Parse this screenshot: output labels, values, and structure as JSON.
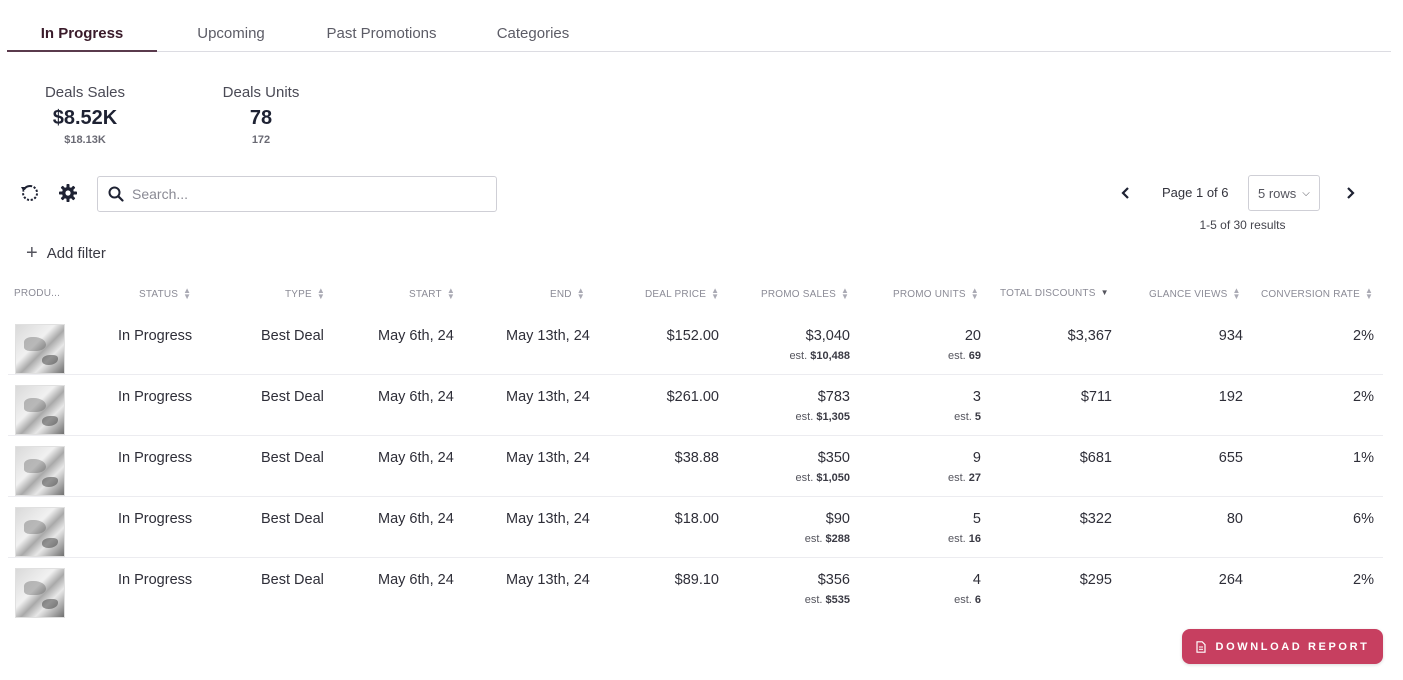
{
  "tabs": [
    {
      "label": "In Progress",
      "active": true
    },
    {
      "label": "Upcoming",
      "active": false
    },
    {
      "label": "Past Promotions",
      "active": false
    },
    {
      "label": "Categories",
      "active": false
    }
  ],
  "kpis": {
    "sales": {
      "label": "Deals Sales",
      "value": "$8.52K",
      "sub": "$18.13K"
    },
    "units": {
      "label": "Deals Units",
      "value": "78",
      "sub": "172"
    }
  },
  "toolbar": {
    "refresh_icon": "refresh-icon",
    "settings_icon": "gear-icon",
    "search_placeholder": "Search..."
  },
  "pagination": {
    "page_label": "Page 1 of 6",
    "rows_per_page": "5 rows",
    "results_label": "1-5 of 30 results"
  },
  "filter": {
    "add_label": "Add filter"
  },
  "table": {
    "columns": {
      "product": "PRODU...",
      "status": "STATUS",
      "type": "TYPE",
      "start": "START",
      "end": "END",
      "deal_price": "DEAL PRICE",
      "promo_sales": "PROMO SALES",
      "promo_units": "PROMO UNITS",
      "total_discounts": "TOTAL DISCOUNTS",
      "glance_views": "GLANCE VIEWS",
      "conversion_rate": "CONVERSION RATE"
    },
    "est_prefix": "est.",
    "rows": [
      {
        "status": "In Progress",
        "type": "Best Deal",
        "start": "May 6th, 24",
        "end": "May 13th, 24",
        "deal_price": "$152.00",
        "promo_sales": "$3,040",
        "promo_sales_est": "$10,488",
        "promo_units": "20",
        "promo_units_est": "69",
        "total_discounts": "$3,367",
        "glance_views": "934",
        "conversion_rate": "2%"
      },
      {
        "status": "In Progress",
        "type": "Best Deal",
        "start": "May 6th, 24",
        "end": "May 13th, 24",
        "deal_price": "$261.00",
        "promo_sales": "$783",
        "promo_sales_est": "$1,305",
        "promo_units": "3",
        "promo_units_est": "5",
        "total_discounts": "$711",
        "glance_views": "192",
        "conversion_rate": "2%"
      },
      {
        "status": "In Progress",
        "type": "Best Deal",
        "start": "May 6th, 24",
        "end": "May 13th, 24",
        "deal_price": "$38.88",
        "promo_sales": "$350",
        "promo_sales_est": "$1,050",
        "promo_units": "9",
        "promo_units_est": "27",
        "total_discounts": "$681",
        "glance_views": "655",
        "conversion_rate": "1%"
      },
      {
        "status": "In Progress",
        "type": "Best Deal",
        "start": "May 6th, 24",
        "end": "May 13th, 24",
        "deal_price": "$18.00",
        "promo_sales": "$90",
        "promo_sales_est": "$288",
        "promo_units": "5",
        "promo_units_est": "16",
        "total_discounts": "$322",
        "glance_views": "80",
        "conversion_rate": "6%"
      },
      {
        "status": "In Progress",
        "type": "Best Deal",
        "start": "May 6th, 24",
        "end": "May 13th, 24",
        "deal_price": "$89.10",
        "promo_sales": "$356",
        "promo_sales_est": "$535",
        "promo_units": "4",
        "promo_units_est": "6",
        "total_discounts": "$295",
        "glance_views": "264",
        "conversion_rate": "2%"
      }
    ]
  },
  "download": {
    "label": "DOWNLOAD REPORT",
    "color": "#c73f60"
  }
}
